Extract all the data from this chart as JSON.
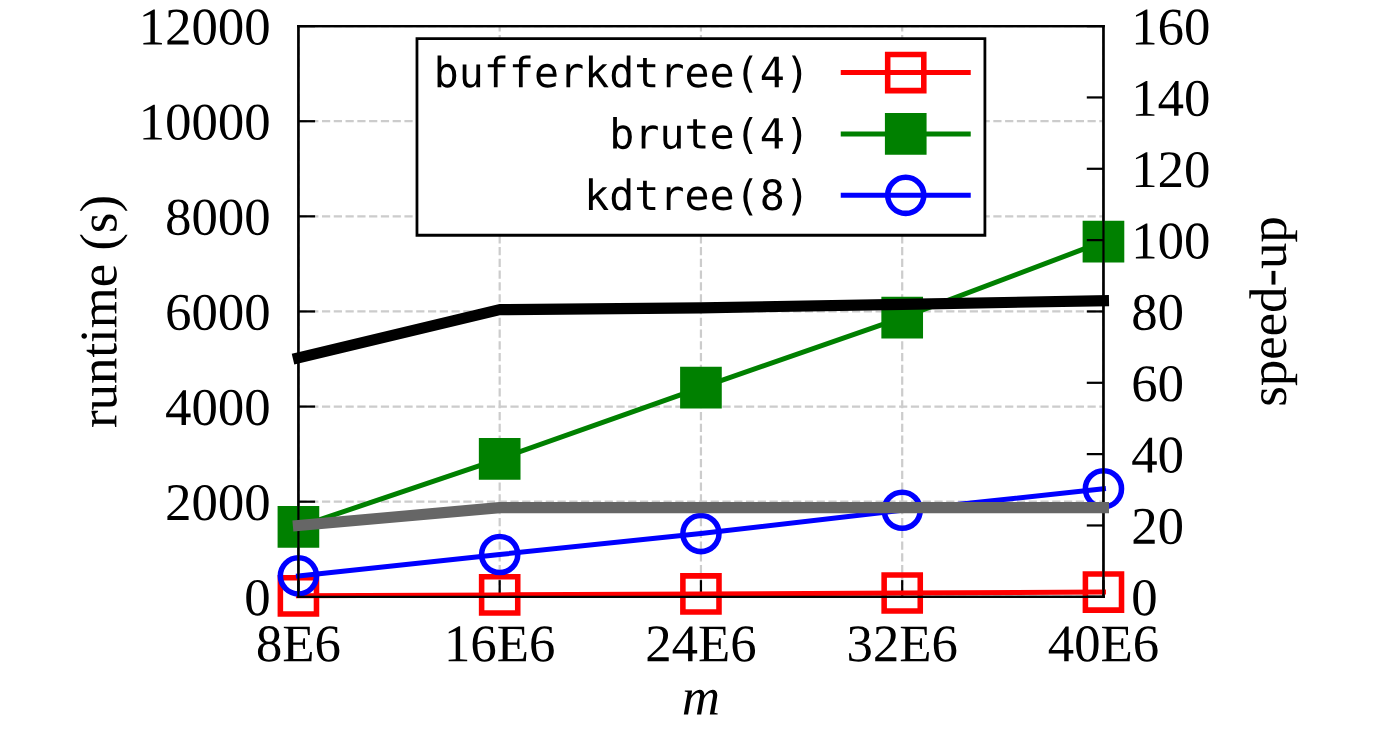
{
  "chart_data": {
    "type": "line",
    "xlabel": "m",
    "ylabel": "runtime (s)",
    "y2label": "speed-up",
    "x": [
      8000000,
      16000000,
      24000000,
      32000000,
      40000000
    ],
    "xlim": [
      8000000,
      40000000
    ],
    "xticks": [
      {
        "value": 8000000,
        "label": "8E6"
      },
      {
        "value": 16000000,
        "label": "16E6"
      },
      {
        "value": 24000000,
        "label": "24E6"
      },
      {
        "value": 32000000,
        "label": "32E6"
      },
      {
        "value": 40000000,
        "label": "40E6"
      }
    ],
    "ylim": [
      0,
      12000
    ],
    "yticks": [
      0,
      2000,
      4000,
      6000,
      8000,
      10000,
      12000
    ],
    "y2lim": [
      0,
      160
    ],
    "y2ticks": [
      0,
      20,
      40,
      60,
      80,
      100,
      120,
      140,
      160
    ],
    "grid": true,
    "legend": "top",
    "line_style": "solid",
    "series": [
      {
        "name": "bufferkdtree(4)",
        "color": "#ff0000",
        "marker": "square",
        "values": [
          20,
          40,
          60,
          80,
          100
        ]
      },
      {
        "name": "brute(4)",
        "color": "#008000",
        "marker": "square",
        "values": [
          1470,
          2900,
          4400,
          5870,
          7470
        ]
      },
      {
        "name": "kdtree(8)",
        "color": "#0000ff",
        "marker": "circle",
        "values": [
          440,
          890,
          1330,
          1820,
          2270
        ]
      },
      {
        "color": "#000000",
        "axis": "y2",
        "marker": "none",
        "values": [
          67,
          80.5,
          81,
          82,
          83
        ]
      },
      {
        "color": "#666666",
        "axis": "y2",
        "marker": "none",
        "values": [
          20,
          25,
          25,
          25,
          25
        ]
      }
    ]
  }
}
